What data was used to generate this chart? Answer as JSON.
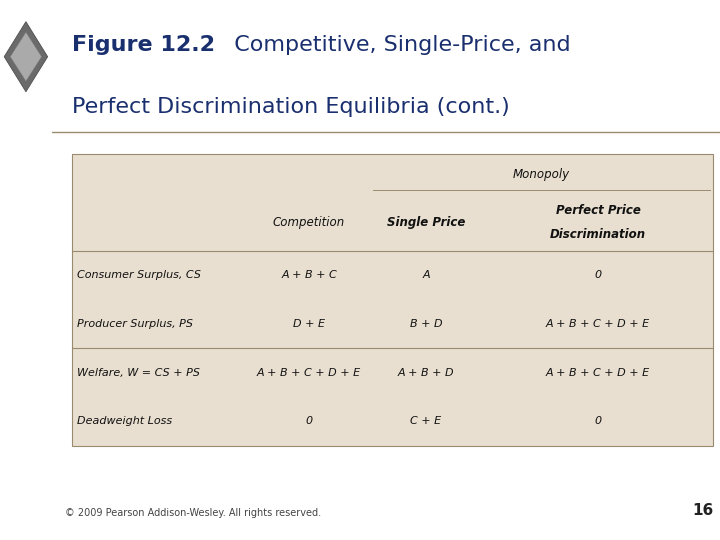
{
  "title_bold": "Figure 12.2",
  "title_rest": "  Competitive, Single-Price, and",
  "title_line2": "Perfect Discrimination Equilibria (cont.)",
  "title_color": "#1a2f6e",
  "title_fontsize": 16,
  "bg_color": "#ffffff",
  "sidebar_color": "#c9b99a",
  "table_bg": "#e8dfd0",
  "border_color": "#9a8a70",
  "footer_text": "© 2009 Pearson Addison-Wesley. All rights reserved.",
  "page_number": "16",
  "col_headers": [
    "",
    "Competition",
    "Single Price",
    "Perfect Price\nDiscrimination"
  ],
  "monopoly_header": "Monopoly",
  "rows": [
    [
      "Consumer Surplus, CS",
      "A + B + C",
      "A",
      "0"
    ],
    [
      "Producer Surplus, PS",
      "D + E",
      "B + D",
      "A + B + C + D + E"
    ],
    [
      "Welfare, W = CS + PS",
      "A + B + C + D + E",
      "A + B + D",
      "A + B + C + D + E"
    ],
    [
      "Deadweight Loss",
      "0",
      "C + E",
      "0"
    ]
  ]
}
